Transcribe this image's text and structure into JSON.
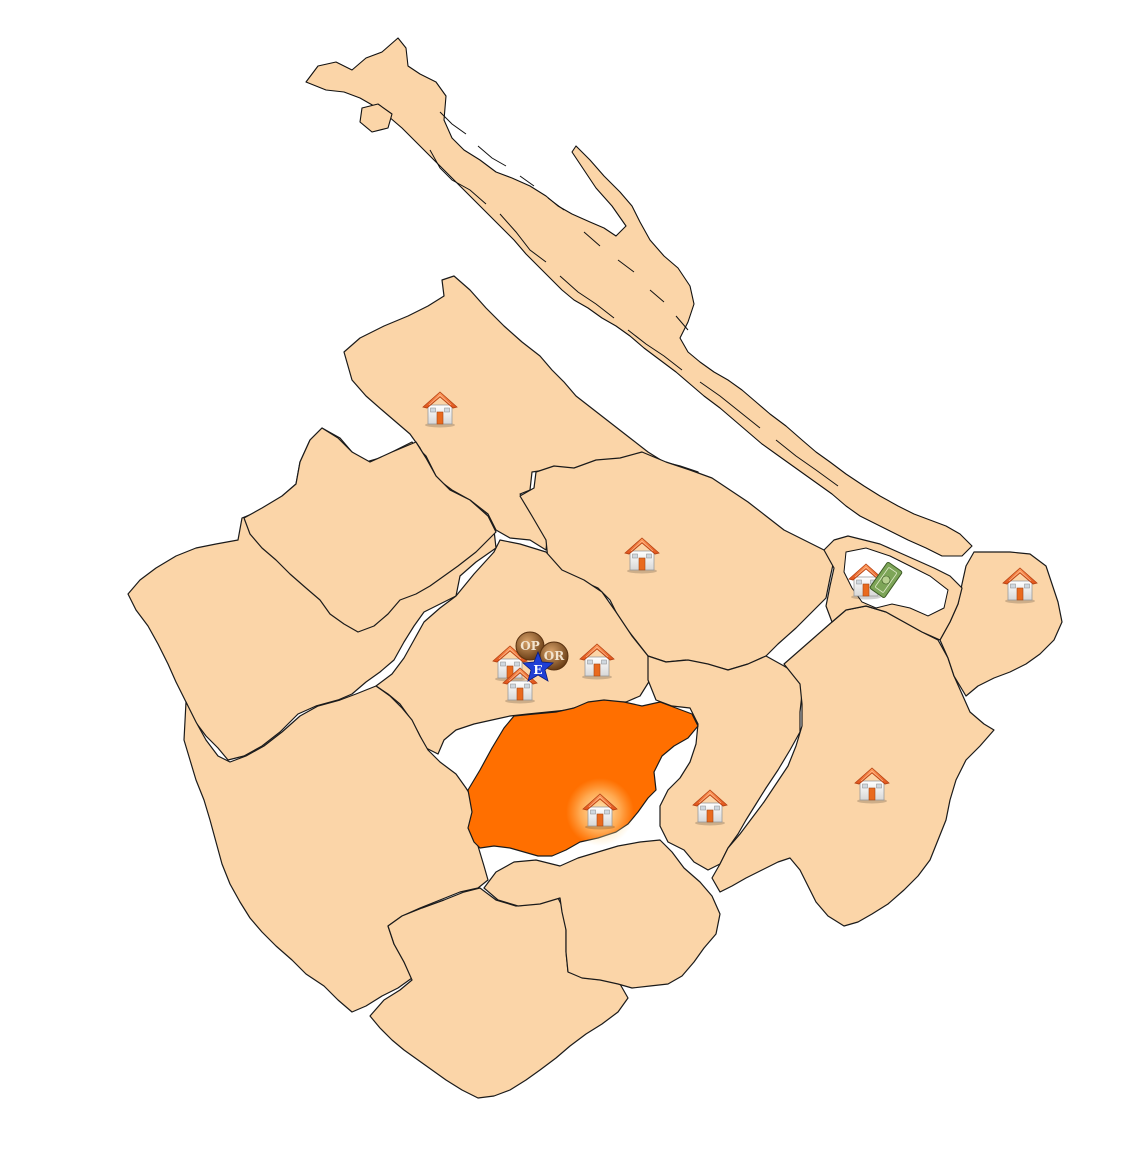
{
  "map": {
    "colors": {
      "region_fill": "#fbd5a8",
      "selected_fill": "#ff6f00",
      "border": "#1a1a1a",
      "background": "#ffffff",
      "house_roof": "#f26522",
      "house_wall": "#f4f4f4",
      "house_door": "#e96a1e",
      "badge_brown": "#8a5a2b",
      "badge_star": "#1f3fd6",
      "money_green": "#6f9a4a"
    },
    "selected_region": "central-south-region",
    "markers": [
      {
        "icon": "house-icon"
      },
      {
        "icon": "house-icon"
      },
      {
        "icon": "house-icon"
      },
      {
        "icon": "house-icon"
      },
      {
        "icon": "house-icon"
      },
      {
        "icon": "house-icon"
      },
      {
        "icon": "house-icon"
      },
      {
        "icon": "house-icon"
      },
      {
        "icon": "house-icon"
      },
      {
        "icon": "house-icon"
      },
      {
        "icon": "house-icon"
      }
    ],
    "badges": {
      "op_label": "OP",
      "or_label": "OR",
      "e_label": "E",
      "money_icon": "banknote-icon"
    }
  }
}
